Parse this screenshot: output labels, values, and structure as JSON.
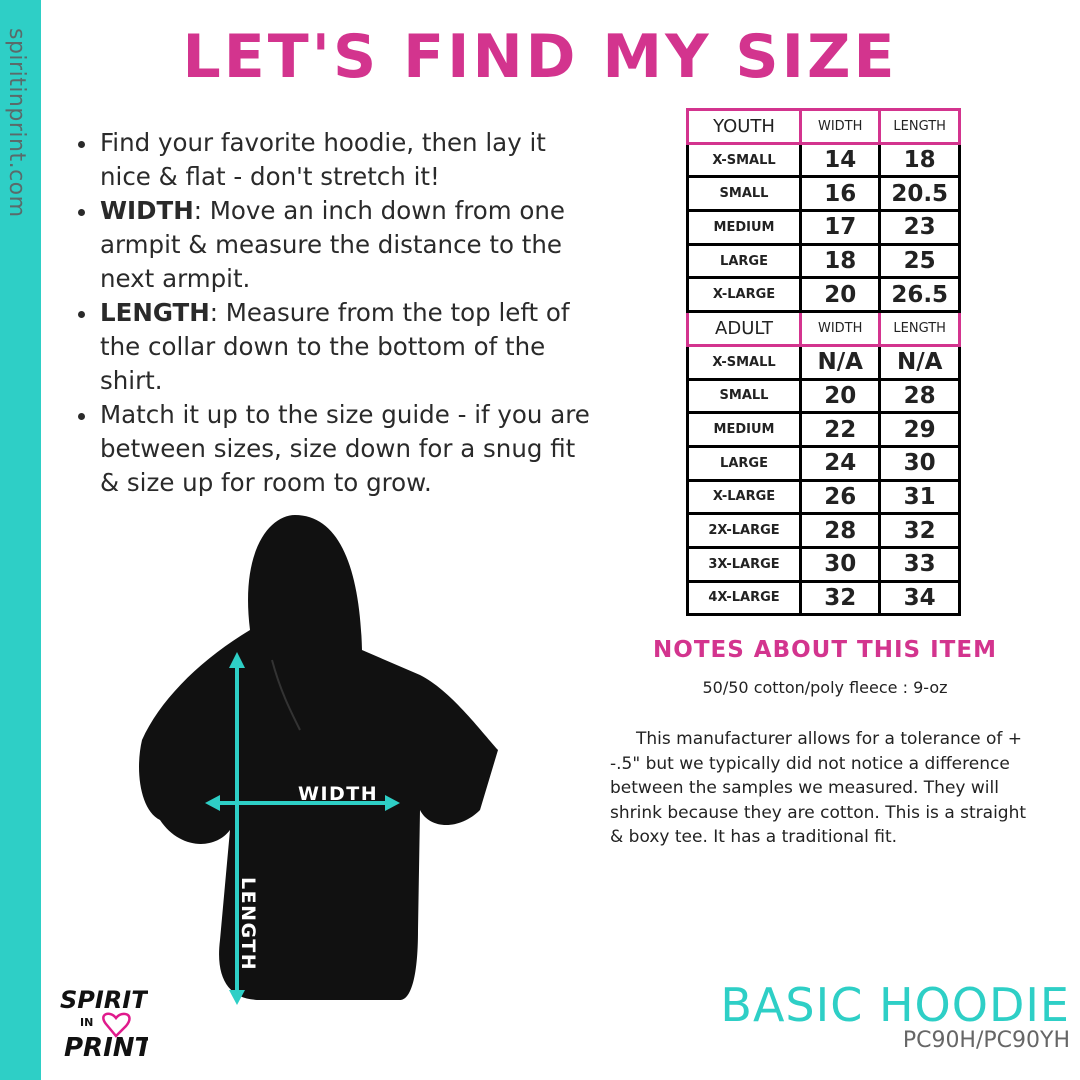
{
  "side_url": "spiritinprint.com",
  "title": "LET'S FIND MY SIZE",
  "instructions": [
    {
      "bold": "",
      "text": "Find your favorite hoodie, then lay it nice & flat - don't stretch it!"
    },
    {
      "bold": "WIDTH",
      "text": ": Move an inch down from one armpit & measure the distance to the next armpit."
    },
    {
      "bold": "LENGTH",
      "text": ": Measure from the top left of the collar down to the bottom of the shirt."
    },
    {
      "bold": "",
      "text": "Match it up to the size guide - if you are between sizes, size down for a snug fit & size up for room to grow."
    }
  ],
  "diagram": {
    "width_label": "WIDTH",
    "length_label": "LENGTH"
  },
  "size_chart": {
    "youth": {
      "label": "YOUTH",
      "width": "WIDTH",
      "length": "LENGTH",
      "rows": [
        [
          "X-SMALL",
          "14",
          "18"
        ],
        [
          "SMALL",
          "16",
          "20.5"
        ],
        [
          "MEDIUM",
          "17",
          "23"
        ],
        [
          "LARGE",
          "18",
          "25"
        ],
        [
          "X-LARGE",
          "20",
          "26.5"
        ]
      ]
    },
    "adult": {
      "label": "ADULT",
      "width": "WIDTH",
      "length": "LENGTH",
      "rows": [
        [
          "X-SMALL",
          "N/A",
          "N/A"
        ],
        [
          "SMALL",
          "20",
          "28"
        ],
        [
          "MEDIUM",
          "22",
          "29"
        ],
        [
          "LARGE",
          "24",
          "30"
        ],
        [
          "X-LARGE",
          "26",
          "31"
        ],
        [
          "2X-LARGE",
          "28",
          "32"
        ],
        [
          "3X-LARGE",
          "30",
          "33"
        ],
        [
          "4X-LARGE",
          "32",
          "34"
        ]
      ]
    }
  },
  "notes": {
    "heading": "NOTES ABOUT THIS ITEM",
    "material": "50/50 cotton/poly fleece : 9-oz",
    "body": "This manufacturer allows for a tolerance of + -.5\" but we typically did not notice a difference between the samples we measured. They will shrink because they are cotton. This is a straight & boxy tee. It has a traditional fit."
  },
  "product": {
    "name": "BASIC HOODIE",
    "code": "PC90H/PC90YH"
  },
  "logo": {
    "text": "SPIRIT IN PRINT"
  },
  "colors": {
    "accent": "#d3348e",
    "teal": "#2ecfc6"
  }
}
